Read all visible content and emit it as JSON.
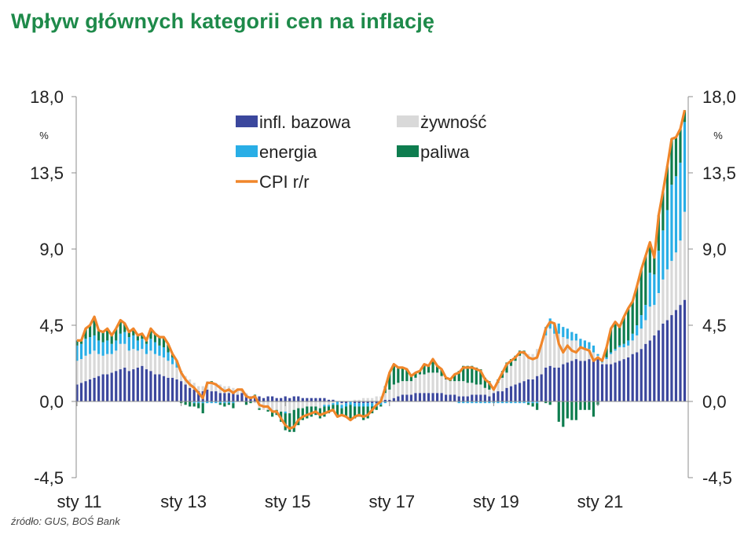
{
  "title": "Wpływ głównych kategorii cen na inflację",
  "source": "źródło: GUS, BOŚ Bank",
  "chart_data": {
    "type": "bar",
    "stacked": true,
    "title": "Wpływ głównych kategorii cen na inflację",
    "start_month": "2011-01",
    "end_month": "2022-09",
    "frequency": "monthly",
    "x_tick_labels": [
      "sty 11",
      "sty 13",
      "sty 15",
      "sty 17",
      "sty 19",
      "sty 21"
    ],
    "y_tick_labels": [
      "18,0",
      "13,5",
      "9,0",
      "4,5",
      "0,0",
      "-4,5"
    ],
    "ylim": [
      -4.5,
      18
    ],
    "y_unit_left": "%",
    "y_unit_right": "%",
    "legend_position": "top-center",
    "grid": false,
    "series": [
      {
        "name": "infl. bazowa",
        "type": "bar",
        "color": "#3b479d",
        "values": [
          1.0,
          1.1,
          1.2,
          1.3,
          1.4,
          1.5,
          1.6,
          1.6,
          1.7,
          1.8,
          1.9,
          2.0,
          1.8,
          1.9,
          2.0,
          2.1,
          1.9,
          1.8,
          1.6,
          1.6,
          1.5,
          1.4,
          1.4,
          1.3,
          1.2,
          1.0,
          0.8,
          0.7,
          0.6,
          0.6,
          0.7,
          0.6,
          0.6,
          0.5,
          0.5,
          0.5,
          0.5,
          0.4,
          0.5,
          0.4,
          0.3,
          0.3,
          0.3,
          0.2,
          0.3,
          0.3,
          0.2,
          0.2,
          0.3,
          0.2,
          0.3,
          0.3,
          0.2,
          0.2,
          0.2,
          0.2,
          0.2,
          0.2,
          0.1,
          0.1,
          0.0,
          -0.1,
          -0.1,
          0.0,
          -0.1,
          -0.1,
          -0.1,
          -0.1,
          -0.1,
          -0.1,
          0.0,
          0.1,
          0.1,
          0.2,
          0.3,
          0.4,
          0.4,
          0.4,
          0.5,
          0.5,
          0.5,
          0.5,
          0.5,
          0.5,
          0.5,
          0.4,
          0.4,
          0.4,
          0.3,
          0.3,
          0.3,
          0.4,
          0.4,
          0.4,
          0.4,
          0.3,
          0.5,
          0.6,
          0.6,
          0.8,
          0.9,
          1.0,
          1.1,
          1.2,
          1.3,
          1.3,
          1.5,
          1.6,
          2.0,
          2.1,
          2.0,
          2.0,
          2.2,
          2.3,
          2.4,
          2.5,
          2.4,
          2.4,
          2.5,
          2.5,
          2.5,
          2.2,
          2.2,
          2.2,
          2.3,
          2.4,
          2.5,
          2.6,
          2.8,
          2.9,
          3.1,
          3.4,
          3.6,
          3.9,
          4.2,
          4.6,
          4.8,
          5.1,
          5.4,
          5.7,
          6.0
        ]
      },
      {
        "name": "żywność",
        "type": "bar",
        "color": "#d9d9d9",
        "values": [
          1.4,
          1.4,
          1.5,
          1.5,
          1.6,
          1.3,
          1.1,
          1.2,
          1.1,
          1.2,
          1.5,
          1.4,
          1.2,
          1.2,
          1.0,
          1.0,
          0.9,
          1.2,
          1.2,
          1.1,
          1.1,
          1.0,
          0.8,
          0.7,
          0.5,
          0.5,
          0.5,
          0.4,
          0.3,
          0.3,
          0.5,
          0.5,
          0.5,
          0.5,
          0.4,
          0.4,
          0.3,
          0.3,
          0.2,
          0.1,
          0.0,
          -0.1,
          -0.4,
          -0.5,
          -0.5,
          -0.6,
          -0.5,
          -0.6,
          -0.6,
          -0.7,
          -0.5,
          -0.4,
          -0.4,
          -0.3,
          -0.3,
          -0.3,
          -0.4,
          -0.2,
          -0.2,
          -0.1,
          0.0,
          -0.1,
          0.0,
          0.0,
          0.1,
          0.1,
          0.2,
          0.2,
          0.2,
          0.3,
          0.3,
          0.4,
          0.6,
          0.8,
          0.8,
          0.8,
          0.8,
          0.8,
          0.9,
          1.1,
          1.1,
          1.2,
          1.2,
          1.2,
          1.0,
          0.9,
          0.8,
          0.8,
          0.9,
          0.9,
          0.8,
          0.7,
          0.6,
          0.6,
          0.4,
          0.4,
          0.3,
          0.5,
          0.8,
          0.9,
          1.2,
          1.4,
          1.6,
          1.6,
          1.5,
          1.5,
          1.6,
          1.8,
          1.9,
          2.2,
          2.0,
          2.0,
          1.6,
          1.4,
          1.2,
          1.1,
          0.8,
          0.7,
          0.6,
          0.4,
          0.2,
          0.1,
          0.3,
          0.6,
          0.7,
          0.8,
          0.7,
          0.7,
          0.8,
          1.0,
          1.2,
          1.4,
          2.0,
          1.8,
          2.2,
          2.6,
          3.0,
          3.2,
          3.4,
          3.8,
          5.2
        ]
      },
      {
        "name": "energia",
        "type": "bar",
        "color": "#29aee6",
        "values": [
          0.9,
          0.9,
          1.0,
          1.0,
          0.9,
          0.8,
          0.8,
          0.8,
          0.6,
          0.6,
          0.6,
          0.7,
          0.8,
          0.8,
          0.6,
          0.6,
          0.6,
          0.7,
          0.7,
          0.6,
          0.6,
          0.5,
          0.4,
          0.3,
          0.1,
          0.0,
          0.0,
          -0.1,
          -0.1,
          -0.1,
          -0.1,
          -0.1,
          -0.1,
          -0.1,
          -0.1,
          -0.1,
          -0.1,
          0.0,
          0.0,
          0.0,
          0.0,
          0.0,
          0.0,
          0.0,
          0.0,
          0.0,
          0.0,
          0.0,
          -0.1,
          0.0,
          0.0,
          0.0,
          0.0,
          0.0,
          0.0,
          0.0,
          0.0,
          -0.1,
          -0.1,
          -0.1,
          -0.2,
          -0.2,
          -0.2,
          -0.2,
          -0.2,
          -0.2,
          -0.2,
          -0.2,
          -0.2,
          -0.2,
          -0.2,
          -0.1,
          0.0,
          0.0,
          0.0,
          0.0,
          0.0,
          0.0,
          0.0,
          0.0,
          0.0,
          0.0,
          0.0,
          0.0,
          0.0,
          0.0,
          0.0,
          0.0,
          -0.1,
          -0.1,
          -0.1,
          -0.1,
          -0.1,
          -0.1,
          -0.1,
          -0.1,
          -0.1,
          -0.1,
          -0.1,
          -0.1,
          -0.1,
          -0.1,
          -0.1,
          -0.1,
          -0.1,
          -0.1,
          -0.1,
          0.0,
          0.5,
          0.6,
          0.6,
          0.6,
          0.6,
          0.6,
          0.5,
          0.4,
          0.5,
          0.5,
          0.4,
          0.4,
          0.1,
          0.1,
          0.1,
          0.1,
          0.1,
          0.1,
          0.2,
          0.3,
          0.4,
          0.6,
          0.8,
          0.9,
          2.0,
          1.8,
          2.5,
          2.9,
          3.5,
          4.5,
          4.5,
          4.6,
          5.3
        ]
      },
      {
        "name": "paliwa",
        "type": "bar",
        "color": "#0e7d4f",
        "values": [
          0.3,
          0.2,
          0.6,
          0.7,
          1.1,
          0.6,
          0.6,
          0.7,
          0.5,
          0.7,
          0.8,
          0.5,
          0.3,
          0.4,
          0.3,
          0.3,
          0.2,
          0.6,
          0.5,
          0.5,
          0.6,
          0.5,
          0.2,
          0.1,
          -0.1,
          -0.2,
          -0.3,
          -0.2,
          -0.3,
          -0.6,
          0.0,
          0.1,
          0.0,
          -0.1,
          -0.2,
          -0.1,
          -0.3,
          0.0,
          0.0,
          -0.2,
          -0.1,
          0.1,
          -0.1,
          0.0,
          -0.1,
          -0.3,
          -0.3,
          -0.6,
          -1.0,
          -1.1,
          -1.3,
          -1.0,
          -0.7,
          -0.7,
          -0.6,
          -0.5,
          -0.6,
          -0.6,
          -0.4,
          -0.4,
          -0.7,
          -0.4,
          -0.6,
          -0.9,
          -0.7,
          -0.6,
          -0.8,
          -0.7,
          -0.4,
          -0.2,
          -0.1,
          0.4,
          1.0,
          1.2,
          0.9,
          0.8,
          0.7,
          0.3,
          0.3,
          0.2,
          0.6,
          0.4,
          0.8,
          0.4,
          0.4,
          0.1,
          0.1,
          0.4,
          0.6,
          0.9,
          1.0,
          1.0,
          1.0,
          0.9,
          0.6,
          0.5,
          0.0,
          0.2,
          0.4,
          0.6,
          0.4,
          0.3,
          0.3,
          0.2,
          -0.1,
          -0.2,
          -0.4,
          0.0,
          -0.1,
          -0.2,
          0.0,
          -1.2,
          -1.5,
          -1.0,
          -1.1,
          -1.1,
          -0.5,
          -0.5,
          -0.5,
          -0.9,
          -0.2,
          0.0,
          0.6,
          1.4,
          1.6,
          1.1,
          1.6,
          1.9,
          1.9,
          2.3,
          2.7,
          2.9,
          1.8,
          1.0,
          2.1,
          2.3,
          2.6,
          2.7,
          2.3,
          2.0,
          0.7
        ]
      },
      {
        "name": "CPI r/r",
        "type": "line",
        "color": "#f0862a",
        "values": [
          3.6,
          3.6,
          4.3,
          4.5,
          5.0,
          4.2,
          4.1,
          4.3,
          3.9,
          4.3,
          4.8,
          4.6,
          4.1,
          4.3,
          3.9,
          4.0,
          3.6,
          4.3,
          4.0,
          3.8,
          3.8,
          3.4,
          2.8,
          2.4,
          1.7,
          1.3,
          1.0,
          0.8,
          0.5,
          0.2,
          1.1,
          1.1,
          1.0,
          0.8,
          0.6,
          0.7,
          0.5,
          0.7,
          0.7,
          0.3,
          0.2,
          0.3,
          -0.2,
          -0.3,
          -0.3,
          -0.6,
          -0.6,
          -1.0,
          -1.4,
          -1.6,
          -1.5,
          -1.1,
          -0.9,
          -0.8,
          -0.7,
          -0.6,
          -0.8,
          -0.7,
          -0.6,
          -0.5,
          -0.9,
          -0.8,
          -0.9,
          -1.1,
          -0.9,
          -0.8,
          -0.9,
          -0.8,
          -0.5,
          -0.2,
          0.0,
          0.8,
          1.7,
          2.2,
          2.0,
          2.0,
          1.9,
          1.5,
          1.7,
          1.8,
          2.2,
          2.1,
          2.5,
          2.1,
          1.9,
          1.4,
          1.3,
          1.6,
          1.7,
          2.0,
          2.0,
          2.0,
          1.9,
          1.8,
          1.3,
          1.1,
          0.7,
          1.2,
          1.7,
          2.2,
          2.4,
          2.6,
          2.9,
          2.9,
          2.6,
          2.5,
          2.6,
          3.4,
          4.3,
          4.7,
          4.6,
          3.4,
          2.9,
          3.3,
          3.0,
          2.9,
          3.2,
          3.1,
          3.0,
          2.4,
          2.6,
          2.4,
          3.2,
          4.3,
          4.7,
          4.4,
          5.0,
          5.5,
          5.9,
          6.8,
          7.8,
          8.6,
          9.4,
          8.5,
          11.0,
          12.4,
          13.9,
          15.5,
          15.6,
          16.1,
          17.2
        ]
      }
    ]
  }
}
